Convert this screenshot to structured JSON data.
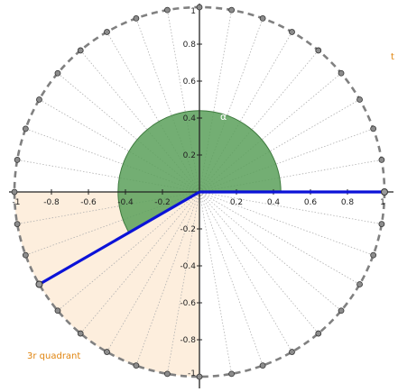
{
  "diagram": {
    "angle_label": "α",
    "quadrant_label": "3r quadrant",
    "corner_label": "t",
    "x_tick_labels": [
      "-1",
      "-0.8",
      "-0.6",
      "-0.4",
      "-0.2",
      "0.2",
      "0.4",
      "0.6",
      "0.8",
      "1"
    ],
    "y_tick_labels": [
      "1",
      "0.8",
      "0.6",
      "0.4",
      "0.2",
      "-0.2",
      "-0.4",
      "-0.6",
      "-0.8",
      "-1"
    ],
    "x_tick_values": [
      -1,
      -0.8,
      -0.6,
      -0.4,
      -0.2,
      0.2,
      0.4,
      0.6,
      0.8,
      1
    ],
    "y_tick_values": [
      1,
      0.8,
      0.6,
      0.4,
      0.2,
      -0.2,
      -0.4,
      -0.6,
      -0.8,
      -1
    ],
    "unit_circle_points": 36,
    "initial_side_angle_deg": 0,
    "terminal_side_angle_deg": 210,
    "highlighted_quadrant": 3,
    "colors": {
      "circle": "#808080",
      "ray": "#0b12d8",
      "angle_fill": "#5aa05a",
      "quadrant_fill": "#fdeedd",
      "point_fill": "#8c8c8c",
      "label_orange": "#e0840e"
    }
  }
}
